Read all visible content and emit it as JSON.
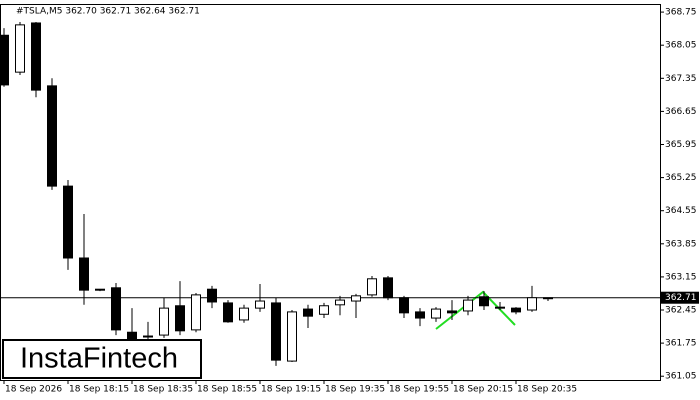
{
  "chart_data": {
    "type": "candlestick",
    "title": "#TSLA,M5  362.70 362.71 362.64 362.71",
    "categories": [
      "18 Sep 2026",
      null,
      null,
      null,
      "18 Sep 18:15",
      null,
      null,
      null,
      "18 Sep 18:35",
      null,
      null,
      null,
      "18 Sep 18:55",
      null,
      null,
      null,
      "18 Sep 19:15",
      null,
      null,
      null,
      "18 Sep 19:35",
      null,
      null,
      null,
      "18 Sep 19:55",
      null,
      null,
      null,
      "18 Sep 20:15",
      null,
      null,
      null,
      "18 Sep 20:35",
      null,
      null
    ],
    "open": [
      368.26,
      367.48,
      368.52,
      367.19,
      365.07,
      363.55,
      362.89,
      362.92,
      361.98,
      361.88,
      361.92,
      362.54,
      362.03,
      362.89,
      362.6,
      362.24,
      362.49,
      362.6,
      361.37,
      362.47,
      362.36,
      362.56,
      362.64,
      362.77,
      363.13,
      362.71,
      362.41,
      362.28,
      362.43,
      362.43,
      362.73,
      362.51,
      362.49,
      362.45,
      362.7
    ],
    "high": [
      368.41,
      368.54,
      368.54,
      367.35,
      365.2,
      364.48,
      362.89,
      363.02,
      362.49,
      362.2,
      362.71,
      363.06,
      362.81,
      362.96,
      362.66,
      362.56,
      363.0,
      362.71,
      362.45,
      362.56,
      362.6,
      362.75,
      362.79,
      363.17,
      363.17,
      362.75,
      362.49,
      362.51,
      362.66,
      362.75,
      362.85,
      362.62,
      362.51,
      362.96,
      362.71
    ],
    "low": [
      367.17,
      367.42,
      366.95,
      364.99,
      363.3,
      362.56,
      362.85,
      361.92,
      361.77,
      361.82,
      361.86,
      361.92,
      361.98,
      362.49,
      362.18,
      362.18,
      362.41,
      361.27,
      361.35,
      362.07,
      362.28,
      362.34,
      362.28,
      362.73,
      362.66,
      362.28,
      362.11,
      362.2,
      362.24,
      362.34,
      362.45,
      362.45,
      362.36,
      362.41,
      362.64
    ],
    "close": [
      367.21,
      368.48,
      367.1,
      365.07,
      363.55,
      362.87,
      362.87,
      362.03,
      361.84,
      361.9,
      362.49,
      362.01,
      362.77,
      362.62,
      362.2,
      362.49,
      362.64,
      361.39,
      362.41,
      362.32,
      362.54,
      362.66,
      362.75,
      363.11,
      362.71,
      362.39,
      362.28,
      362.47,
      362.39,
      362.66,
      362.54,
      362.49,
      362.41,
      362.71,
      362.71
    ],
    "ylim": [
      360.97,
      368.9
    ],
    "yticks": [
      368.75,
      368.05,
      367.35,
      366.65,
      365.95,
      365.25,
      364.55,
      363.85,
      363.15,
      362.45,
      361.75,
      361.05
    ],
    "last_price": 362.71,
    "up_color": "#ffffff",
    "down_color": "#000000",
    "watermark": "InstaFintech"
  }
}
